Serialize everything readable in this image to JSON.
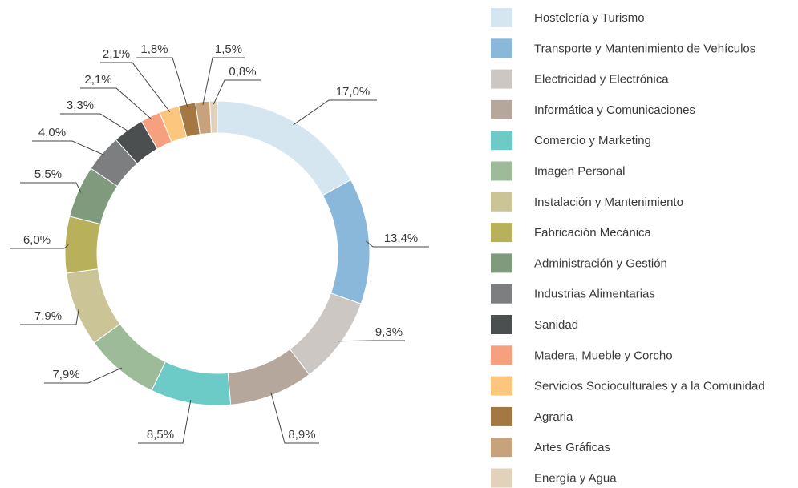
{
  "chart_data": {
    "type": "donut",
    "categories": [
      "Hostelería y Turismo",
      "Transporte y Mantenimiento de Vehículos",
      "Electricidad y Electrónica",
      "Informática y Comunicaciones",
      "Comercio y Marketing",
      "Imagen Personal",
      "Instalación y Mantenimiento",
      "Fabricación Mecánica",
      "Administración y Gestión",
      "Industrias Alimentarias",
      "Sanidad",
      "Madera, Mueble y Corcho",
      "Servicios Socioculturales y a la Comunidad",
      "Agraria",
      "Artes Gráficas",
      "Energía y Agua"
    ],
    "values": [
      17.0,
      13.4,
      9.3,
      8.9,
      8.5,
      7.9,
      7.9,
      6.0,
      5.5,
      4.0,
      3.3,
      2.1,
      2.1,
      1.8,
      1.5,
      0.8
    ],
    "value_labels": [
      "17,0%",
      "13,4%",
      "9,3%",
      "8,9%",
      "8,5%",
      "7,9%",
      "7,9%",
      "6,0%",
      "5,5%",
      "4,0%",
      "3,3%",
      "2,1%",
      "2,1%",
      "1,8%",
      "1,5%",
      "0,8%"
    ],
    "colors": [
      "#d6e6f1",
      "#8ab8da",
      "#ccc7c3",
      "#b5a79b",
      "#6dcbc7",
      "#9dbb98",
      "#cbc496",
      "#b8b05b",
      "#809a7d",
      "#7c7e80",
      "#4b4f50",
      "#f6a07f",
      "#fcc67f",
      "#a37842",
      "#c7a27a",
      "#e3d2bb"
    ],
    "legend": "right"
  }
}
